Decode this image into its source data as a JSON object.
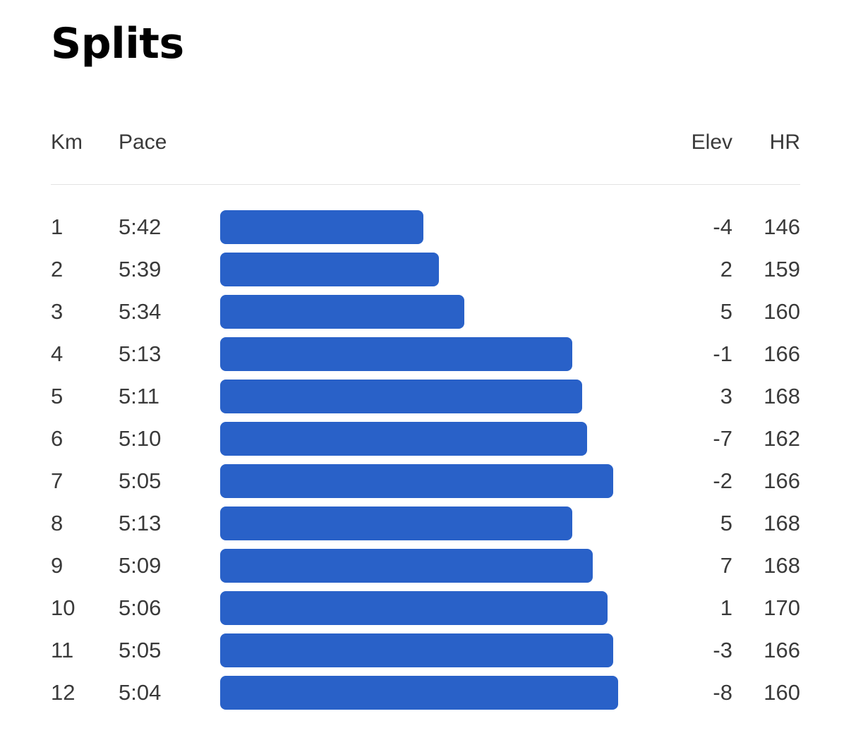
{
  "title": "Splits",
  "columns": {
    "km": "Km",
    "pace": "Pace",
    "elev": "Elev",
    "hr": "HR"
  },
  "colors": {
    "bar": "#2961c8",
    "divider": "#e3e3e3"
  },
  "splits": [
    {
      "km": "1",
      "pace": "5:42",
      "elev": "-4",
      "hr": "146"
    },
    {
      "km": "2",
      "pace": "5:39",
      "elev": "2",
      "hr": "159"
    },
    {
      "km": "3",
      "pace": "5:34",
      "elev": "5",
      "hr": "160"
    },
    {
      "km": "4",
      "pace": "5:13",
      "elev": "-1",
      "hr": "166"
    },
    {
      "km": "5",
      "pace": "5:11",
      "elev": "3",
      "hr": "168"
    },
    {
      "km": "6",
      "pace": "5:10",
      "elev": "-7",
      "hr": "162"
    },
    {
      "km": "7",
      "pace": "5:05",
      "elev": "-2",
      "hr": "166"
    },
    {
      "km": "8",
      "pace": "5:13",
      "elev": "5",
      "hr": "168"
    },
    {
      "km": "9",
      "pace": "5:09",
      "elev": "7",
      "hr": "168"
    },
    {
      "km": "10",
      "pace": "5:06",
      "elev": "1",
      "hr": "170"
    },
    {
      "km": "11",
      "pace": "5:05",
      "elev": "-3",
      "hr": "166"
    },
    {
      "km": "12",
      "pace": "5:04",
      "elev": "-8",
      "hr": "160"
    }
  ]
}
